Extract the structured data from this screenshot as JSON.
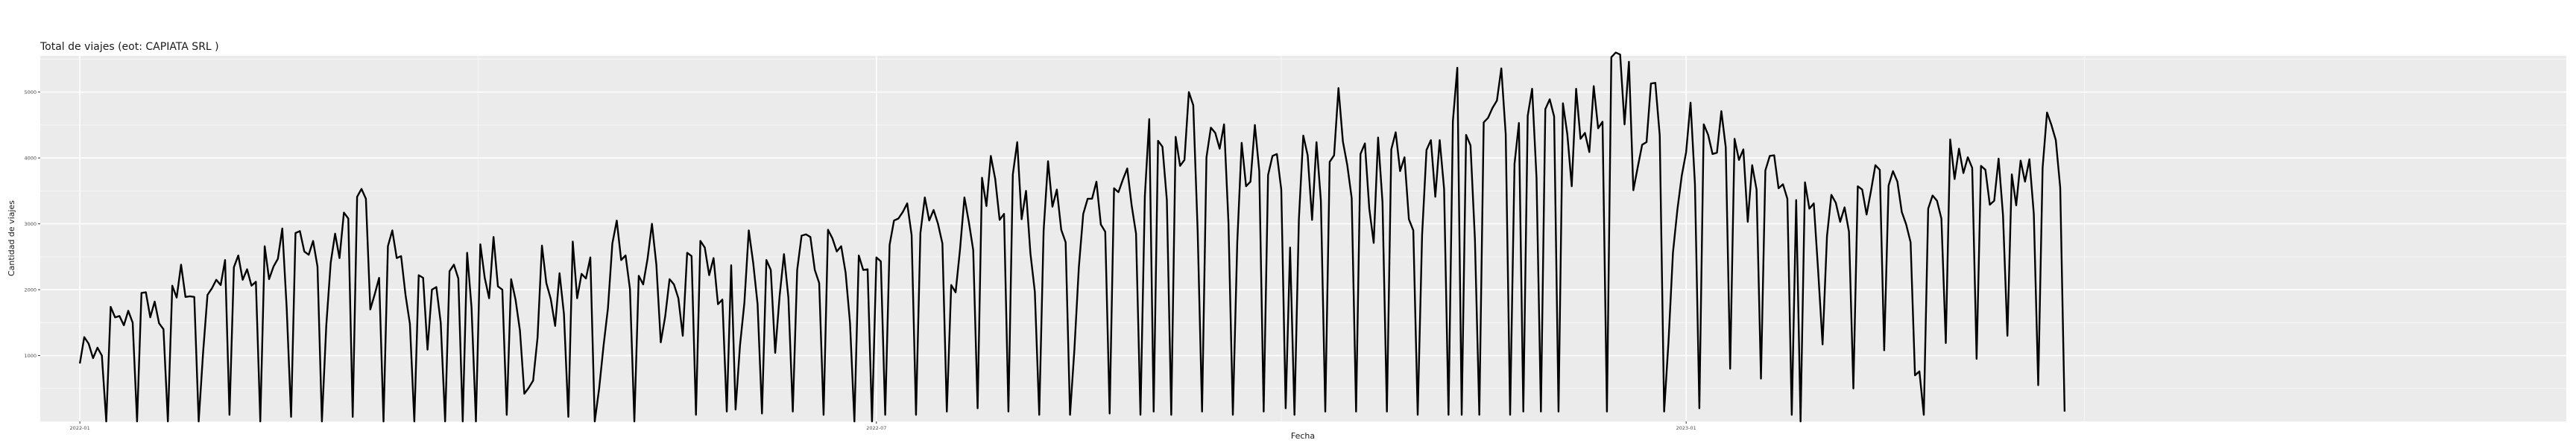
{
  "chart_data": {
    "type": "line",
    "title": "Total de viajes (eot: CAPIATA SRL )",
    "xlabel": "Fecha",
    "ylabel": "Cantidad de viajes",
    "x_start": "2022-01-01",
    "xlim": [
      "2021-12-23",
      "2023-07-20"
    ],
    "ylim": [
      0,
      5550
    ],
    "x_ticks": [
      {
        "date": "2022-01-01",
        "label": "2022-01"
      },
      {
        "date": "2022-07-01",
        "label": "2022-07"
      },
      {
        "date": "2023-01-01",
        "label": "2023-01"
      }
    ],
    "y_ticks": [
      1000,
      2000,
      3000,
      4000,
      5000
    ],
    "grid": true,
    "legend": "none",
    "series": [
      {
        "name": "Total de viajes",
        "color": "#000000",
        "values": [
          880,
          1280,
          1180,
          960,
          1120,
          1000,
          0,
          1740,
          1580,
          1600,
          1460,
          1680,
          1500,
          0,
          1950,
          1960,
          1580,
          1820,
          1490,
          1400,
          0,
          2060,
          1880,
          2380,
          1890,
          1900,
          1890,
          0,
          1040,
          1920,
          2020,
          2150,
          2070,
          2450,
          100,
          2340,
          2520,
          2150,
          2310,
          2060,
          2120,
          0,
          2660,
          2160,
          2350,
          2470,
          2930,
          1720,
          70,
          2860,
          2890,
          2580,
          2530,
          2740,
          2350,
          0,
          1460,
          2410,
          2850,
          2480,
          3170,
          3080,
          70,
          3410,
          3530,
          3380,
          1700,
          1930,
          2180,
          0,
          2660,
          2900,
          2480,
          2510,
          1920,
          1480,
          0,
          2220,
          2180,
          1090,
          2000,
          2040,
          1500,
          0,
          2280,
          2380,
          2170,
          0,
          2560,
          1730,
          0,
          2690,
          2180,
          1870,
          2800,
          2050,
          2000,
          100,
          2160,
          1850,
          1380,
          420,
          510,
          620,
          1270,
          2670,
          2100,
          1860,
          1450,
          2250,
          1630,
          70,
          2730,
          1870,
          2240,
          2170,
          2490,
          0,
          500,
          1150,
          1720,
          2700,
          3050,
          2450,
          2520,
          2010,
          0,
          2210,
          2080,
          2470,
          3000,
          2380,
          1200,
          1590,
          2160,
          2080,
          1870,
          1300,
          2560,
          2510,
          100,
          2740,
          2640,
          2220,
          2480,
          1780,
          1850,
          150,
          2370,
          180,
          1150,
          1800,
          2900,
          2410,
          1780,
          120,
          2450,
          2300,
          1040,
          1900,
          2540,
          1880,
          150,
          2300,
          2820,
          2840,
          2800,
          2300,
          2100,
          100,
          2910,
          2780,
          2580,
          2660,
          2260,
          1500,
          0,
          2520,
          2300,
          2310,
          0,
          2490,
          2430,
          100,
          2680,
          3050,
          3080,
          3180,
          3310,
          2830,
          100,
          2860,
          3400,
          3050,
          3210,
          3000,
          2700,
          150,
          2070,
          1960,
          2610,
          3400,
          3030,
          2600,
          200,
          3700,
          3270,
          4030,
          3680,
          3060,
          3150,
          150,
          3750,
          4240,
          3070,
          3500,
          2550,
          1970,
          100,
          2900,
          3950,
          3260,
          3520,
          2910,
          2720,
          100,
          1100,
          2340,
          3150,
          3380,
          3380,
          3640,
          2990,
          2880,
          120,
          3540,
          3480,
          3670,
          3840,
          3280,
          2850,
          100,
          3420,
          4590,
          150,
          4260,
          4170,
          3360,
          100,
          4320,
          3880,
          3970,
          5000,
          4800,
          2890,
          150,
          4010,
          4460,
          4380,
          4140,
          4510,
          3020,
          100,
          2720,
          4230,
          3570,
          3640,
          4500,
          3800,
          150,
          3740,
          4030,
          4060,
          3520,
          200,
          2640,
          100,
          3070,
          4340,
          4040,
          3060,
          4240,
          3350,
          150,
          3940,
          4040,
          5060,
          4250,
          3890,
          3390,
          150,
          4060,
          4220,
          3230,
          2710,
          4310,
          3330,
          150,
          4130,
          4390,
          3800,
          4010,
          3070,
          2900,
          100,
          2830,
          4120,
          4270,
          3410,
          4270,
          3530,
          100,
          4560,
          5370,
          100,
          4350,
          4190,
          2770,
          100,
          4540,
          4610,
          4760,
          4870,
          5360,
          4360,
          100,
          3910,
          4530,
          150,
          4640,
          5050,
          3700,
          150,
          4740,
          4890,
          4630,
          150,
          4830,
          4360,
          3570,
          5050,
          4290,
          4380,
          4090,
          5090,
          4450,
          4550,
          150,
          5530,
          5600,
          5570,
          4510,
          5460,
          3510,
          3860,
          4200,
          4240,
          5130,
          5140,
          4340,
          150,
          1220,
          2560,
          3210,
          3730,
          4090,
          4840,
          3600,
          200,
          4510,
          4350,
          4060,
          4080,
          4710,
          4160,
          800,
          4290,
          3970,
          4130,
          3030,
          3890,
          3520,
          650,
          3810,
          4030,
          4040,
          3540,
          3600,
          3380,
          100,
          3360,
          0,
          3630,
          3230,
          3310,
          2280,
          1170,
          2810,
          3440,
          3320,
          3030,
          3250,
          2880,
          500,
          3570,
          3520,
          3140,
          3500,
          3890,
          3820,
          1080,
          3580,
          3800,
          3640,
          3180,
          2990,
          2720,
          700,
          760,
          100,
          3230,
          3430,
          3350,
          3080,
          1190,
          4280,
          3680,
          4140,
          3770,
          4010,
          3850,
          950,
          3880,
          3820,
          3290,
          3350,
          3990,
          3130,
          1300,
          3750,
          3280,
          3960,
          3640,
          3980,
          3150,
          550,
          3850,
          4690,
          4500,
          4270,
          3550,
          150
        ]
      }
    ]
  }
}
